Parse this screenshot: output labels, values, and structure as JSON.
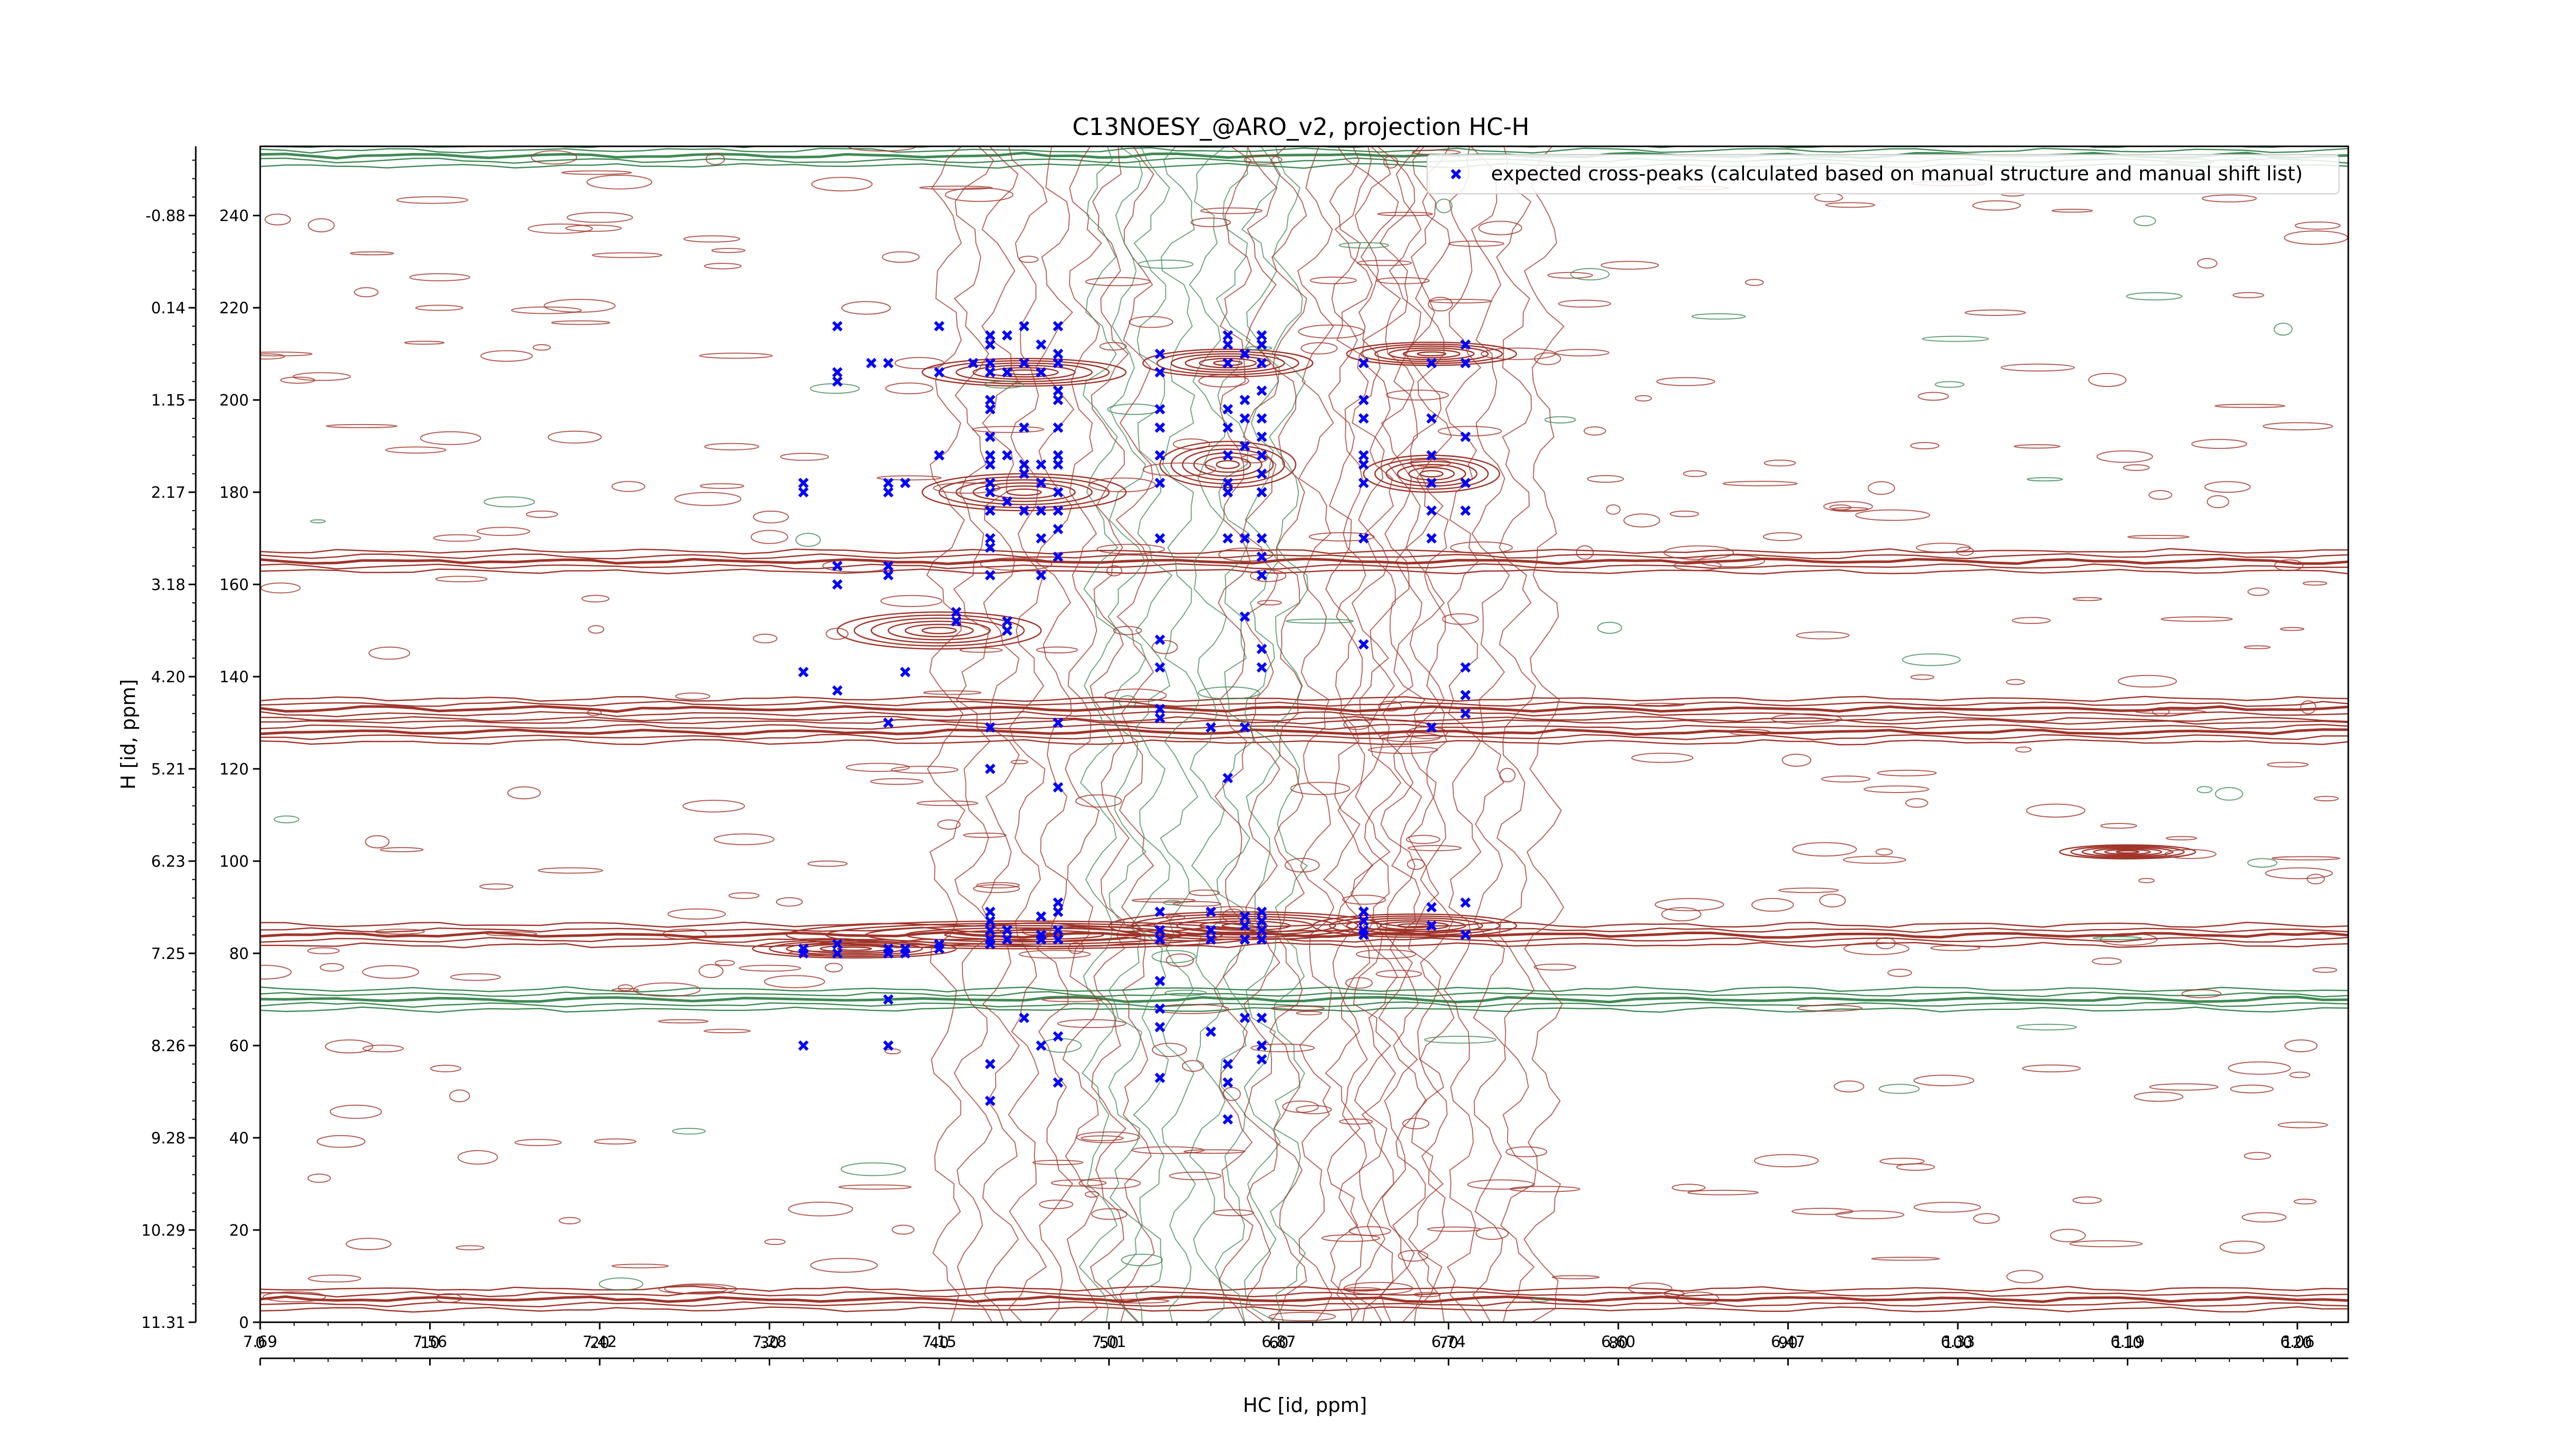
{
  "chart_data": {
    "type": "contour",
    "title": "C13NOESY_@ARO_v2, projection HC-H",
    "xlabel": "HC [id, ppm]",
    "ylabel": "H [id, ppm]",
    "xlim": [
      0,
      123
    ],
    "ylim": [
      0,
      255
    ],
    "x_index_ticks": [
      "0",
      "10",
      "20",
      "30",
      "40",
      "50",
      "60",
      "70",
      "80",
      "90",
      "100",
      "110",
      "120"
    ],
    "x_ppm_ticks": [
      "7.69",
      "7.56",
      "7.42",
      "7.28",
      "7.15",
      "7.01",
      "6.87",
      "6.74",
      "6.60",
      "6.47",
      "6.33",
      "6.19",
      "6.06"
    ],
    "y_index_ticks": [
      "0",
      "20",
      "40",
      "60",
      "80",
      "100",
      "120",
      "140",
      "160",
      "180",
      "200",
      "220",
      "240"
    ],
    "y_ppm_ticks": [
      "11.31",
      "10.29",
      "9.28",
      "8.26",
      "7.25",
      "6.23",
      "5.21",
      "4.20",
      "3.18",
      "2.17",
      "1.15",
      "0.14",
      "-0.88"
    ],
    "legend": {
      "position": "top-right",
      "entries": [
        {
          "label": "expected cross-peaks (calculated based on manual structure and manual shift list)",
          "color": "#0000ff",
          "marker": "x"
        }
      ]
    },
    "contour_colors": {
      "positive": "#a0342a",
      "negative": "#3f8a55"
    },
    "horizontal_bands": [
      {
        "y": 165,
        "sign": "positive"
      },
      {
        "y": 133,
        "sign": "positive"
      },
      {
        "y": 128,
        "sign": "positive"
      },
      {
        "y": 84,
        "sign": "positive"
      },
      {
        "y": 70,
        "sign": "negative"
      },
      {
        "y": 5,
        "sign": "positive"
      },
      {
        "y": 253,
        "sign": "negative"
      }
    ],
    "vertical_bands": [
      {
        "x": 46,
        "sign": "positive"
      },
      {
        "x": 55,
        "sign": "negative"
      },
      {
        "x": 63,
        "sign": "positive"
      },
      {
        "x": 70,
        "sign": "positive"
      }
    ],
    "peaks": [
      {
        "x": 34,
        "y": 216
      },
      {
        "x": 34,
        "y": 206
      },
      {
        "x": 34,
        "y": 204
      },
      {
        "x": 36,
        "y": 208
      },
      {
        "x": 37,
        "y": 208
      },
      {
        "x": 40,
        "y": 216
      },
      {
        "x": 40,
        "y": 206
      },
      {
        "x": 42,
        "y": 208
      },
      {
        "x": 43,
        "y": 214
      },
      {
        "x": 43,
        "y": 212
      },
      {
        "x": 43,
        "y": 208
      },
      {
        "x": 43,
        "y": 206
      },
      {
        "x": 43,
        "y": 200
      },
      {
        "x": 43,
        "y": 198
      },
      {
        "x": 43,
        "y": 192
      },
      {
        "x": 43,
        "y": 188
      },
      {
        "x": 43,
        "y": 186
      },
      {
        "x": 43,
        "y": 182
      },
      {
        "x": 43,
        "y": 180
      },
      {
        "x": 43,
        "y": 176
      },
      {
        "x": 43,
        "y": 170
      },
      {
        "x": 43,
        "y": 168
      },
      {
        "x": 43,
        "y": 162
      },
      {
        "x": 44,
        "y": 214
      },
      {
        "x": 44,
        "y": 206
      },
      {
        "x": 44,
        "y": 188
      },
      {
        "x": 44,
        "y": 178
      },
      {
        "x": 45,
        "y": 216
      },
      {
        "x": 45,
        "y": 208
      },
      {
        "x": 45,
        "y": 194
      },
      {
        "x": 45,
        "y": 186
      },
      {
        "x": 45,
        "y": 184
      },
      {
        "x": 45,
        "y": 176
      },
      {
        "x": 46,
        "y": 212
      },
      {
        "x": 46,
        "y": 206
      },
      {
        "x": 46,
        "y": 186
      },
      {
        "x": 46,
        "y": 182
      },
      {
        "x": 46,
        "y": 176
      },
      {
        "x": 46,
        "y": 170
      },
      {
        "x": 46,
        "y": 162
      },
      {
        "x": 47,
        "y": 216
      },
      {
        "x": 47,
        "y": 210
      },
      {
        "x": 47,
        "y": 208
      },
      {
        "x": 47,
        "y": 202
      },
      {
        "x": 47,
        "y": 200
      },
      {
        "x": 47,
        "y": 194
      },
      {
        "x": 47,
        "y": 188
      },
      {
        "x": 47,
        "y": 186
      },
      {
        "x": 47,
        "y": 180
      },
      {
        "x": 47,
        "y": 176
      },
      {
        "x": 47,
        "y": 172
      },
      {
        "x": 47,
        "y": 166
      },
      {
        "x": 32,
        "y": 182
      },
      {
        "x": 32,
        "y": 180
      },
      {
        "x": 37,
        "y": 182
      },
      {
        "x": 37,
        "y": 180
      },
      {
        "x": 38,
        "y": 182
      },
      {
        "x": 34,
        "y": 164
      },
      {
        "x": 34,
        "y": 160
      },
      {
        "x": 37,
        "y": 164
      },
      {
        "x": 37,
        "y": 162
      },
      {
        "x": 40,
        "y": 188
      },
      {
        "x": 40,
        "y": 188
      },
      {
        "x": 41,
        "y": 154
      },
      {
        "x": 41,
        "y": 152
      },
      {
        "x": 44,
        "y": 152
      },
      {
        "x": 44,
        "y": 150
      },
      {
        "x": 32,
        "y": 141
      },
      {
        "x": 34,
        "y": 137
      },
      {
        "x": 38,
        "y": 141
      },
      {
        "x": 37,
        "y": 130
      },
      {
        "x": 43,
        "y": 129
      },
      {
        "x": 43,
        "y": 120
      },
      {
        "x": 47,
        "y": 130
      },
      {
        "x": 47,
        "y": 116
      },
      {
        "x": 53,
        "y": 210
      },
      {
        "x": 53,
        "y": 206
      },
      {
        "x": 53,
        "y": 198
      },
      {
        "x": 53,
        "y": 194
      },
      {
        "x": 53,
        "y": 188
      },
      {
        "x": 53,
        "y": 182
      },
      {
        "x": 53,
        "y": 170
      },
      {
        "x": 57,
        "y": 214
      },
      {
        "x": 57,
        "y": 212
      },
      {
        "x": 57,
        "y": 208
      },
      {
        "x": 57,
        "y": 198
      },
      {
        "x": 57,
        "y": 194
      },
      {
        "x": 57,
        "y": 188
      },
      {
        "x": 57,
        "y": 182
      },
      {
        "x": 57,
        "y": 180
      },
      {
        "x": 57,
        "y": 170
      },
      {
        "x": 58,
        "y": 210
      },
      {
        "x": 58,
        "y": 200
      },
      {
        "x": 58,
        "y": 196
      },
      {
        "x": 58,
        "y": 190
      },
      {
        "x": 58,
        "y": 170
      },
      {
        "x": 59,
        "y": 214
      },
      {
        "x": 59,
        "y": 212
      },
      {
        "x": 59,
        "y": 208
      },
      {
        "x": 59,
        "y": 202
      },
      {
        "x": 59,
        "y": 196
      },
      {
        "x": 59,
        "y": 192
      },
      {
        "x": 59,
        "y": 188
      },
      {
        "x": 59,
        "y": 184
      },
      {
        "x": 59,
        "y": 180
      },
      {
        "x": 59,
        "y": 170
      },
      {
        "x": 59,
        "y": 166
      },
      {
        "x": 59,
        "y": 162
      },
      {
        "x": 58,
        "y": 153
      },
      {
        "x": 53,
        "y": 148
      },
      {
        "x": 53,
        "y": 142
      },
      {
        "x": 59,
        "y": 146
      },
      {
        "x": 59,
        "y": 142
      },
      {
        "x": 53,
        "y": 133
      },
      {
        "x": 53,
        "y": 131
      },
      {
        "x": 56,
        "y": 129
      },
      {
        "x": 58,
        "y": 129
      },
      {
        "x": 57,
        "y": 118
      },
      {
        "x": 65,
        "y": 208
      },
      {
        "x": 65,
        "y": 200
      },
      {
        "x": 65,
        "y": 196
      },
      {
        "x": 65,
        "y": 188
      },
      {
        "x": 65,
        "y": 186
      },
      {
        "x": 65,
        "y": 182
      },
      {
        "x": 65,
        "y": 170
      },
      {
        "x": 69,
        "y": 208
      },
      {
        "x": 69,
        "y": 196
      },
      {
        "x": 69,
        "y": 188
      },
      {
        "x": 69,
        "y": 182
      },
      {
        "x": 69,
        "y": 176
      },
      {
        "x": 69,
        "y": 170
      },
      {
        "x": 71,
        "y": 212
      },
      {
        "x": 71,
        "y": 208
      },
      {
        "x": 71,
        "y": 192
      },
      {
        "x": 71,
        "y": 182
      },
      {
        "x": 71,
        "y": 176
      },
      {
        "x": 65,
        "y": 147
      },
      {
        "x": 71,
        "y": 142
      },
      {
        "x": 71,
        "y": 136
      },
      {
        "x": 71,
        "y": 132
      },
      {
        "x": 69,
        "y": 129
      },
      {
        "x": 32,
        "y": 81
      },
      {
        "x": 32,
        "y": 80
      },
      {
        "x": 34,
        "y": 82
      },
      {
        "x": 34,
        "y": 80
      },
      {
        "x": 37,
        "y": 81
      },
      {
        "x": 37,
        "y": 80
      },
      {
        "x": 38,
        "y": 81
      },
      {
        "x": 38,
        "y": 80
      },
      {
        "x": 40,
        "y": 82
      },
      {
        "x": 40,
        "y": 81
      },
      {
        "x": 43,
        "y": 89
      },
      {
        "x": 43,
        "y": 87
      },
      {
        "x": 43,
        "y": 85
      },
      {
        "x": 43,
        "y": 83
      },
      {
        "x": 43,
        "y": 82
      },
      {
        "x": 44,
        "y": 85
      },
      {
        "x": 44,
        "y": 83
      },
      {
        "x": 46,
        "y": 88
      },
      {
        "x": 46,
        "y": 84
      },
      {
        "x": 46,
        "y": 83
      },
      {
        "x": 47,
        "y": 91
      },
      {
        "x": 47,
        "y": 89
      },
      {
        "x": 47,
        "y": 85
      },
      {
        "x": 47,
        "y": 83
      },
      {
        "x": 53,
        "y": 89
      },
      {
        "x": 53,
        "y": 85
      },
      {
        "x": 53,
        "y": 83
      },
      {
        "x": 56,
        "y": 89
      },
      {
        "x": 56,
        "y": 85
      },
      {
        "x": 56,
        "y": 83
      },
      {
        "x": 58,
        "y": 88
      },
      {
        "x": 58,
        "y": 86
      },
      {
        "x": 58,
        "y": 83
      },
      {
        "x": 59,
        "y": 89
      },
      {
        "x": 59,
        "y": 87
      },
      {
        "x": 59,
        "y": 85
      },
      {
        "x": 59,
        "y": 83
      },
      {
        "x": 65,
        "y": 89
      },
      {
        "x": 65,
        "y": 87
      },
      {
        "x": 65,
        "y": 85
      },
      {
        "x": 65,
        "y": 84
      },
      {
        "x": 69,
        "y": 90
      },
      {
        "x": 69,
        "y": 86
      },
      {
        "x": 71,
        "y": 91
      },
      {
        "x": 71,
        "y": 84
      },
      {
        "x": 37,
        "y": 70
      },
      {
        "x": 32,
        "y": 60
      },
      {
        "x": 37,
        "y": 60
      },
      {
        "x": 53,
        "y": 74
      },
      {
        "x": 53,
        "y": 68
      },
      {
        "x": 53,
        "y": 64
      },
      {
        "x": 56,
        "y": 63
      },
      {
        "x": 57,
        "y": 56
      },
      {
        "x": 58,
        "y": 66
      },
      {
        "x": 59,
        "y": 60
      },
      {
        "x": 59,
        "y": 57
      },
      {
        "x": 59,
        "y": 66
      },
      {
        "x": 45,
        "y": 66
      },
      {
        "x": 47,
        "y": 62
      },
      {
        "x": 43,
        "y": 56
      },
      {
        "x": 46,
        "y": 60
      },
      {
        "x": 53,
        "y": 53
      },
      {
        "x": 57,
        "y": 52
      },
      {
        "x": 43,
        "y": 48
      },
      {
        "x": 47,
        "y": 52
      },
      {
        "x": 57,
        "y": 44
      }
    ]
  }
}
